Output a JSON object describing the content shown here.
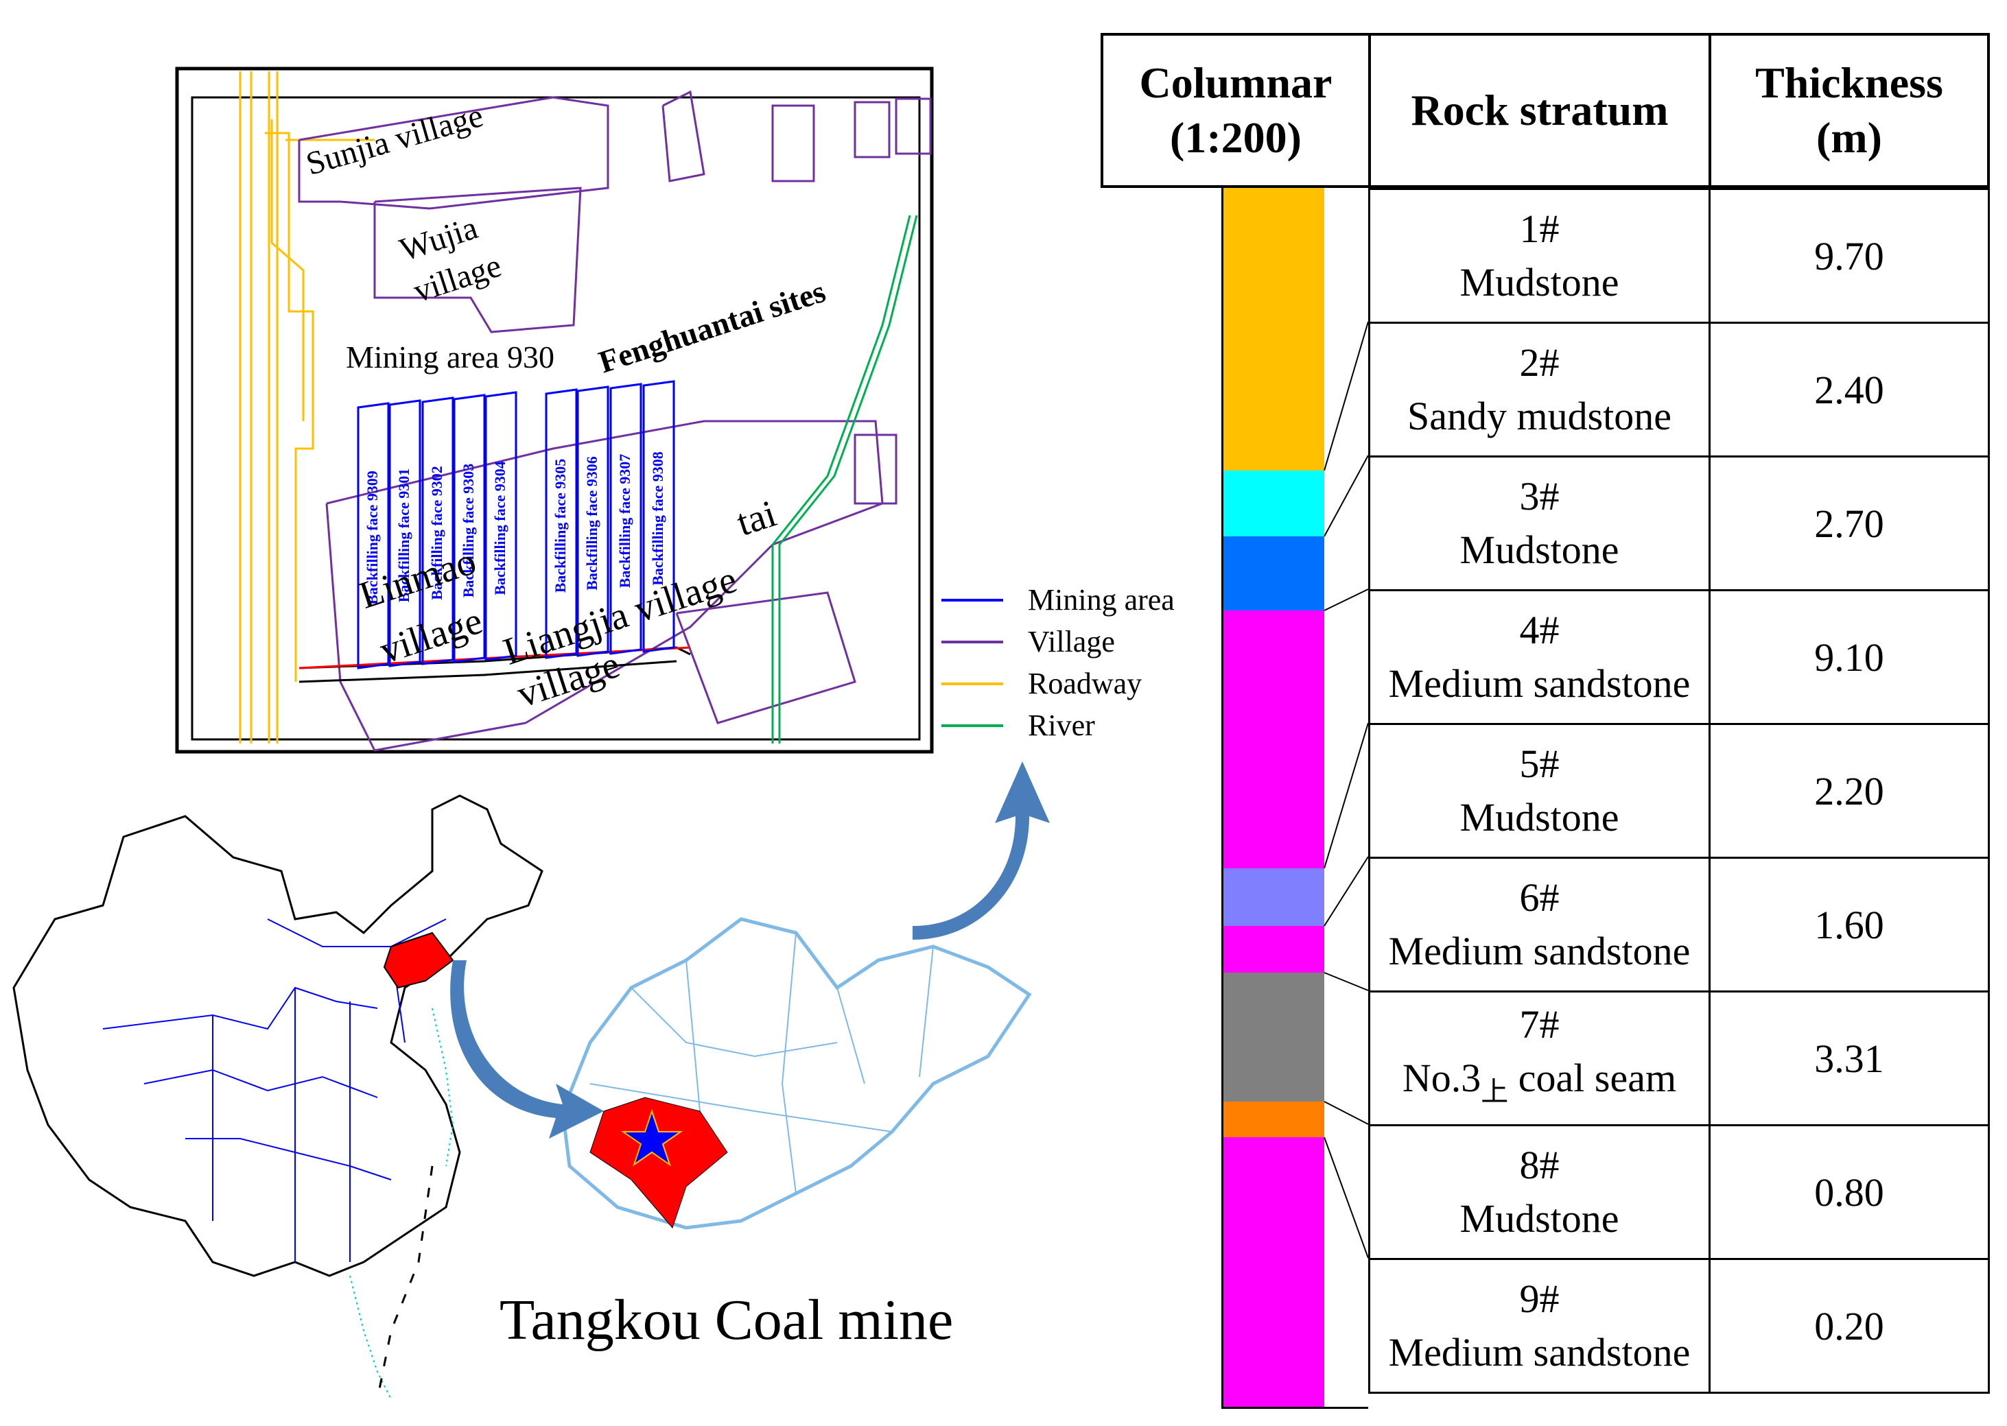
{
  "plan": {
    "labels": {
      "sunjia": "Sunjia village",
      "wujia_1": "Wujia",
      "wujia_2": "village",
      "fenghuang": "Fenghuantai sites",
      "mining_area": "Mining area 930",
      "linmao_1": "Linmao",
      "linmao_2": "village",
      "liangjia_1": "Liangjia village",
      "liangjia_2": "village",
      "tai": "tai"
    },
    "faces": [
      "Backfilling face 9309",
      "Backfilling face 9301",
      "Backfilling face 9302",
      "Backfilling face 9303",
      "Backfilling face 9304",
      "Backfilling face 9305",
      "Backfilling face 9306",
      "Backfilling face 9307",
      "Backfilling face 9308"
    ],
    "legend": [
      {
        "label": "Mining area",
        "color": "#0000ff"
      },
      {
        "label": "Village",
        "color": "#7030a0"
      },
      {
        "label": "Roadway",
        "color": "#ffc000"
      },
      {
        "label": "River",
        "color": "#00b050"
      }
    ]
  },
  "map": {
    "title": "Tangkou Coal mine",
    "china_border_color": "#0000ff",
    "province_fill": "#ff0000",
    "shandong_border_color": "#7fb9e6",
    "mine_marker_color": "#0000ff",
    "arrow_color": "#4a7ebb"
  },
  "strata": {
    "header": {
      "columnar_1": "Columnar",
      "columnar_2": "(1:200)",
      "rock_1": "Rock stratum",
      "thick_1": "Thickness",
      "thick_2": "(m)"
    },
    "rows": [
      {
        "index": "1#",
        "name": "Mudstone",
        "thickness": "9.70"
      },
      {
        "index": "2#",
        "name": "Sandy mudstone",
        "thickness": "2.40"
      },
      {
        "index": "3#",
        "name": "Mudstone",
        "thickness": "2.70"
      },
      {
        "index": "4#",
        "name": "Medium sandstone",
        "thickness": "9.10"
      },
      {
        "index": "5#",
        "name": "Mudstone",
        "thickness": "2.20"
      },
      {
        "index": "6#",
        "name": "Medium sandstone",
        "thickness": "1.60"
      },
      {
        "index": "7#",
        "name_main": "No.3",
        "name_sub": "上",
        "name_tail": " coal seam",
        "thickness": "3.31"
      },
      {
        "index": "8#",
        "name": "Mudstone",
        "thickness": "0.80"
      },
      {
        "index": "9#",
        "name": "Medium sandstone",
        "thickness": "0.20"
      }
    ],
    "column_colors": [
      "#ffc000",
      "#00ffff",
      "#0070ff",
      "#ff00ff",
      "#8080ff",
      "#ff00ff",
      "#808080",
      "#ff8000",
      "#ff00ff"
    ]
  }
}
